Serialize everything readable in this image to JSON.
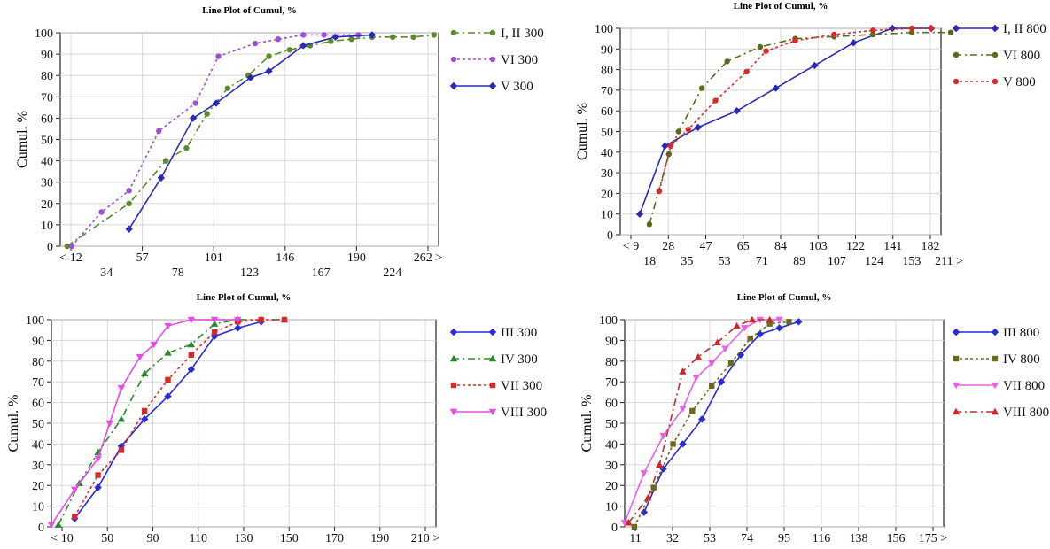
{
  "chart_data": [
    {
      "type": "line",
      "title": "Line Plot of Cumul, %",
      "ylabel": "Cumul. %",
      "ylim": [
        0,
        100
      ],
      "yticks": [
        0,
        10,
        20,
        30,
        40,
        50,
        60,
        70,
        80,
        90,
        100
      ],
      "xticks_top": [
        "< 12",
        "57",
        "101",
        "146",
        "190",
        "262 >"
      ],
      "xticks_bottom": [
        "34",
        "78",
        "123",
        "167",
        "224"
      ],
      "grid": true,
      "legend_position": "right",
      "series": [
        {
          "name": "I, II 300",
          "color": "#5a8a2a",
          "dash": "8,4,2,4",
          "marker": "circle",
          "points": [
            [
              0.3,
              0
            ],
            [
              3,
              20
            ],
            [
              4.6,
              40
            ],
            [
              5.5,
              46
            ],
            [
              6.4,
              62
            ],
            [
              7.3,
              74
            ],
            [
              8.2,
              80
            ],
            [
              9.1,
              89
            ],
            [
              10,
              92
            ],
            [
              10.9,
              94
            ],
            [
              11.8,
              96
            ],
            [
              12.7,
              97
            ],
            [
              13.6,
              98
            ],
            [
              14.5,
              98
            ],
            [
              15.4,
              98
            ],
            [
              16.3,
              99
            ]
          ]
        },
        {
          "name": "VI 300",
          "color": "#9a4fd8",
          "dash": "3,3",
          "marker": "circle",
          "points": [
            [
              0.5,
              0
            ],
            [
              1.8,
              16
            ],
            [
              3,
              26
            ],
            [
              4.3,
              54
            ],
            [
              5.9,
              67
            ],
            [
              6.9,
              89
            ],
            [
              8.5,
              95
            ],
            [
              9.5,
              97
            ],
            [
              10.6,
              99
            ],
            [
              11.5,
              99
            ],
            [
              13,
              99
            ]
          ]
        },
        {
          "name": "V 300",
          "color": "#2a2ab8",
          "dash": "",
          "marker": "diamond",
          "points": [
            [
              3,
              8
            ],
            [
              4.4,
              32
            ],
            [
              5.8,
              60
            ],
            [
              6.8,
              67
            ],
            [
              8.3,
              79
            ],
            [
              9.1,
              82
            ],
            [
              10.6,
              94
            ],
            [
              12,
              98
            ],
            [
              13.6,
              99
            ]
          ]
        }
      ]
    },
    {
      "type": "line",
      "title": "Line Plot of Cumul, %",
      "ylabel": "Cumul. %",
      "ylim": [
        0,
        100
      ],
      "yticks": [
        0,
        10,
        20,
        30,
        40,
        50,
        60,
        70,
        80,
        90,
        100
      ],
      "xticks_top": [
        "< 9",
        "28",
        "47",
        "65",
        "84",
        "103",
        "122",
        "141",
        "182"
      ],
      "xticks_bottom": [
        "18",
        "35",
        "53",
        "71",
        "89",
        "107",
        "124",
        "153",
        "211 >"
      ],
      "grid": true,
      "legend_position": "right",
      "series": [
        {
          "name": "I, II 800",
          "color": "#2a2ab8",
          "dash": "",
          "marker": "diamond",
          "points": [
            [
              1,
              10
            ],
            [
              2.3,
              43
            ],
            [
              4,
              52
            ],
            [
              6,
              60
            ],
            [
              8,
              71
            ],
            [
              10,
              82
            ],
            [
              12,
              93
            ],
            [
              14,
              100
            ],
            [
              16,
              100
            ]
          ]
        },
        {
          "name": "VI 800",
          "color": "#5a6a1a",
          "dash": "8,4,2,4",
          "marker": "circle",
          "points": [
            [
              1.5,
              5
            ],
            [
              2.5,
              39
            ],
            [
              3,
              50
            ],
            [
              4.2,
              71
            ],
            [
              5.5,
              84
            ],
            [
              7.2,
              91
            ],
            [
              9,
              95
            ],
            [
              11,
              96
            ],
            [
              13,
              97
            ],
            [
              15,
              98
            ],
            [
              17,
              98
            ]
          ]
        },
        {
          "name": "V 800",
          "color": "#d82a2a",
          "dash": "3,3",
          "marker": "circle",
          "points": [
            [
              2,
              21
            ],
            [
              2.6,
              43
            ],
            [
              3.5,
              51
            ],
            [
              4.9,
              65
            ],
            [
              6.5,
              79
            ],
            [
              7.5,
              89
            ],
            [
              9,
              94
            ],
            [
              11,
              97
            ],
            [
              13,
              99
            ],
            [
              15,
              100
            ],
            [
              16,
              100
            ]
          ]
        }
      ]
    },
    {
      "type": "line",
      "title": "Line Plot of Cumul, %",
      "ylabel": "Cumul. %",
      "ylim": [
        0,
        100
      ],
      "yticks": [
        0,
        10,
        20,
        30,
        40,
        50,
        60,
        70,
        80,
        90,
        100
      ],
      "xticks_top": [
        "< 10",
        "50",
        "90",
        "110",
        "130",
        "150",
        "170",
        "190",
        "210 >"
      ],
      "xticks_bottom": [],
      "grid": true,
      "legend_position": "right",
      "series": [
        {
          "name": "III 300",
          "color": "#2a2ad8",
          "dash": "",
          "marker": "diamond",
          "points": [
            [
              1,
              4
            ],
            [
              2,
              19
            ],
            [
              3,
              39
            ],
            [
              4,
              52
            ],
            [
              5,
              63
            ],
            [
              6,
              76
            ],
            [
              7,
              92
            ],
            [
              8,
              96
            ],
            [
              9,
              99
            ]
          ]
        },
        {
          "name": "IV 300",
          "color": "#2a8a2a",
          "dash": "8,4,2,4",
          "marker": "triangle",
          "points": [
            [
              0.3,
              1
            ],
            [
              1.2,
              21
            ],
            [
              2,
              36
            ],
            [
              3,
              52
            ],
            [
              4,
              74
            ],
            [
              5,
              84
            ],
            [
              6,
              88
            ],
            [
              7,
              98
            ],
            [
              8,
              100
            ],
            [
              9,
              100
            ],
            [
              10,
              100
            ]
          ]
        },
        {
          "name": "VII 300",
          "color": "#d82a2a",
          "dash": "3,3",
          "marker": "square",
          "points": [
            [
              1,
              5
            ],
            [
              2,
              25
            ],
            [
              3,
              37
            ],
            [
              4,
              56
            ],
            [
              5,
              71
            ],
            [
              6,
              83
            ],
            [
              7,
              94
            ],
            [
              8,
              99
            ],
            [
              9,
              100
            ],
            [
              10,
              100
            ]
          ]
        },
        {
          "name": "VIII 300",
          "color": "#e84ae8",
          "dash": "",
          "marker": "triangle-down",
          "points": [
            [
              0,
              1
            ],
            [
              1,
              18
            ],
            [
              2,
              33
            ],
            [
              2.5,
              50
            ],
            [
              3,
              67
            ],
            [
              3.8,
              82
            ],
            [
              4.4,
              88
            ],
            [
              5,
              97
            ],
            [
              6,
              100
            ],
            [
              7,
              100
            ],
            [
              8,
              100
            ]
          ]
        }
      ]
    },
    {
      "type": "line",
      "title": "Line Plot of Cumul, %",
      "ylabel": "Cumul. %",
      "ylim": [
        0,
        100
      ],
      "yticks": [
        0,
        10,
        20,
        30,
        40,
        50,
        60,
        70,
        80,
        90,
        100
      ],
      "xticks_top": [
        "11",
        "32",
        "53",
        "74",
        "95",
        "116",
        "138",
        "156",
        "175 >"
      ],
      "xticks_bottom": [],
      "grid": true,
      "legend_position": "right",
      "series": [
        {
          "name": "III 800",
          "color": "#2a2ad8",
          "dash": "",
          "marker": "diamond",
          "points": [
            [
              1,
              7
            ],
            [
              2,
              28
            ],
            [
              3,
              40
            ],
            [
              4,
              52
            ],
            [
              5,
              70
            ],
            [
              6,
              83
            ],
            [
              7,
              93
            ],
            [
              8,
              96
            ],
            [
              9,
              99
            ]
          ]
        },
        {
          "name": "IV 800",
          "color": "#6a6a1a",
          "dash": "3,3",
          "marker": "square",
          "points": [
            [
              0.5,
              0
            ],
            [
              1.5,
              19
            ],
            [
              2.5,
              40
            ],
            [
              3.5,
              56
            ],
            [
              4.5,
              68
            ],
            [
              5.5,
              79
            ],
            [
              6.5,
              91
            ],
            [
              7.5,
              98
            ],
            [
              8.5,
              99
            ]
          ]
        },
        {
          "name": "VII 800",
          "color": "#e860e8",
          "dash": "",
          "marker": "triangle-down",
          "points": [
            [
              0,
              2
            ],
            [
              1,
              26
            ],
            [
              2,
              44
            ],
            [
              3,
              57
            ],
            [
              3.7,
              72
            ],
            [
              4.5,
              79
            ],
            [
              5.2,
              86
            ],
            [
              6.2,
              96
            ],
            [
              7,
              100
            ],
            [
              8,
              100
            ]
          ]
        },
        {
          "name": "VIII 800",
          "color": "#c82a2a",
          "dash": "8,4,2,4",
          "marker": "triangle",
          "points": [
            [
              0.2,
              2
            ],
            [
              1.2,
              14
            ],
            [
              1.8,
              30
            ],
            [
              3,
              75
            ],
            [
              3.8,
              82
            ],
            [
              4.8,
              89
            ],
            [
              5.8,
              97
            ],
            [
              6.6,
              100
            ],
            [
              7.5,
              100
            ]
          ]
        }
      ]
    }
  ]
}
